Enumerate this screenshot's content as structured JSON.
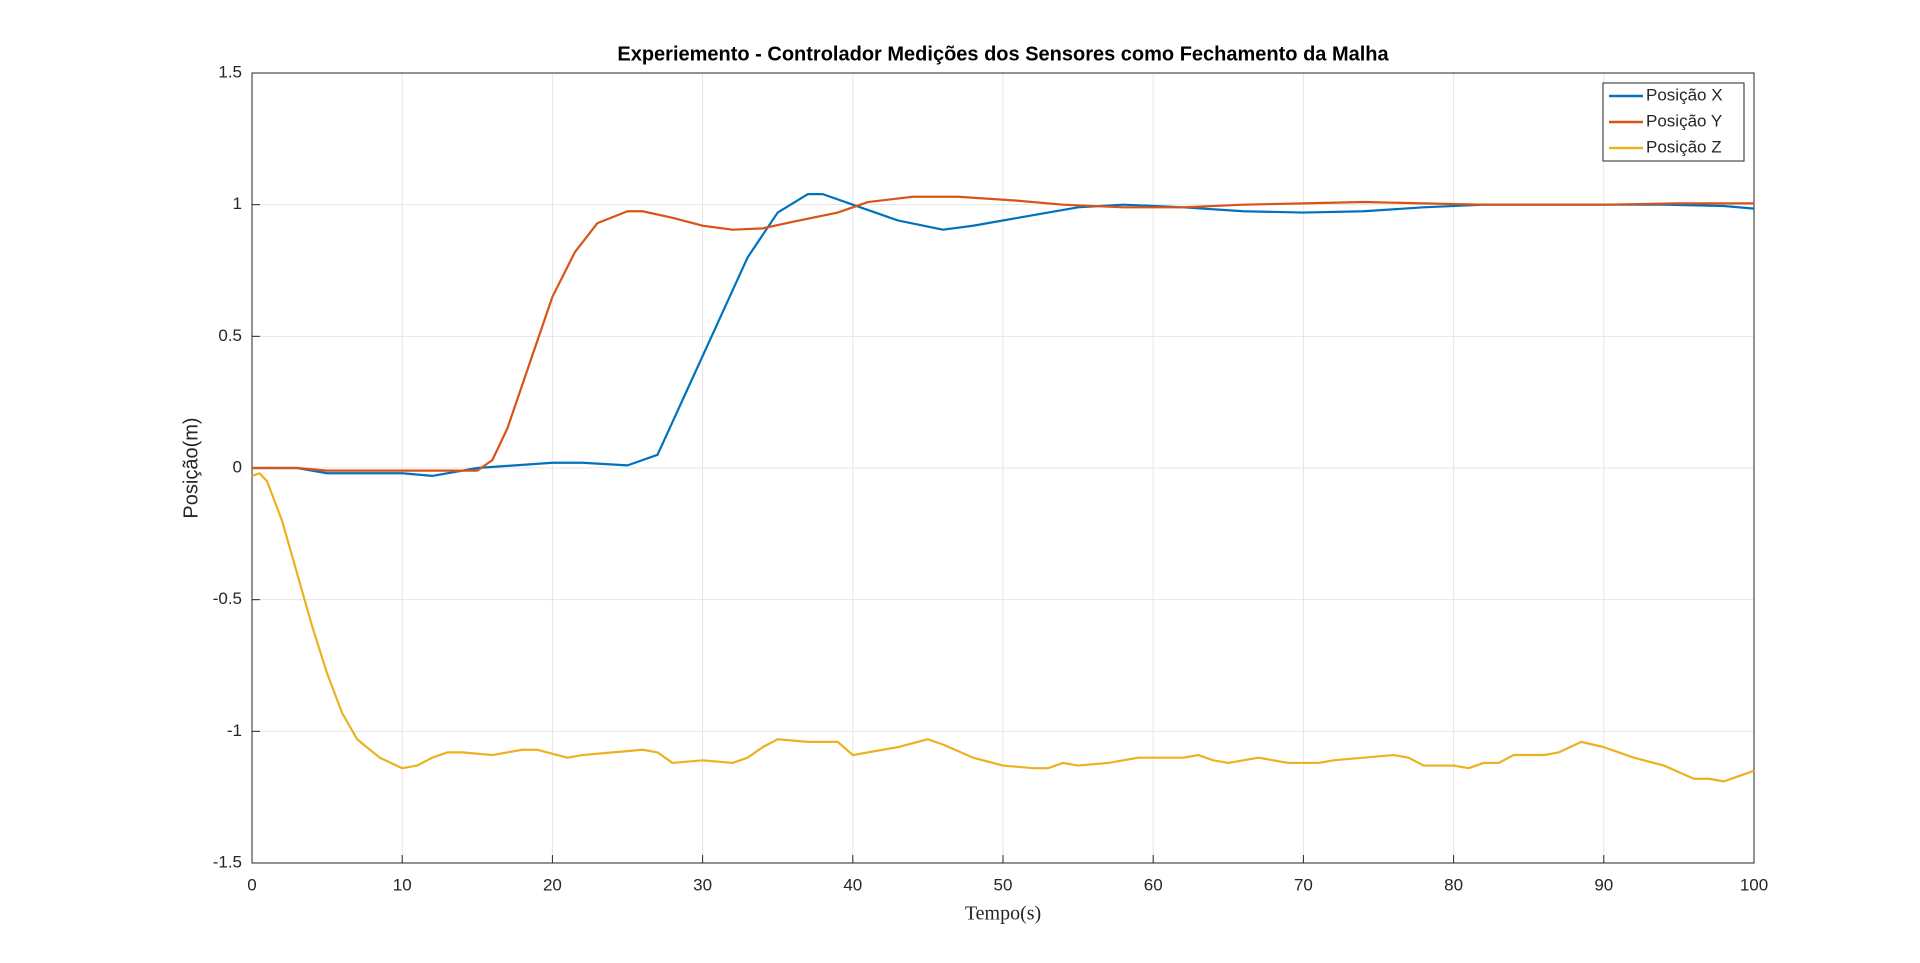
{
  "chart_data": {
    "type": "line",
    "title": "Experiemento - Controlador Medições dos Sensores como Fechamento da Malha",
    "xlabel": "Tempo(s)",
    "ylabel": "Posição(m)",
    "xlim": [
      0,
      100
    ],
    "ylim": [
      -1.5,
      1.5
    ],
    "xticks": [
      0,
      10,
      20,
      30,
      40,
      50,
      60,
      70,
      80,
      90,
      100
    ],
    "yticks": [
      -1.5,
      -1,
      -0.5,
      0,
      0.5,
      1,
      1.5
    ],
    "grid": true,
    "legend": "northeast",
    "series": [
      {
        "name": "Posição X",
        "color": "#0072bd",
        "x": [
          0,
          3,
          5,
          10,
          12,
          15,
          20,
          22,
          25,
          27,
          29,
          31,
          33,
          35,
          37,
          38,
          40,
          43,
          46,
          48,
          51,
          55,
          58,
          62,
          66,
          70,
          74,
          78,
          82,
          86,
          90,
          94,
          98,
          100
        ],
        "values": [
          0,
          0,
          -0.02,
          -0.02,
          -0.03,
          0,
          0.02,
          0.02,
          0.01,
          0.05,
          0.3,
          0.55,
          0.8,
          0.97,
          1.04,
          1.04,
          1.0,
          0.94,
          0.905,
          0.92,
          0.95,
          0.99,
          1.0,
          0.99,
          0.975,
          0.97,
          0.975,
          0.99,
          1.0,
          1.0,
          1.0,
          1.0,
          0.995,
          0.985
        ]
      },
      {
        "name": "Posição Y",
        "color": "#d95319",
        "x": [
          0,
          3,
          5,
          10,
          12,
          15,
          16,
          17,
          18.5,
          20,
          21.5,
          23,
          25,
          26,
          28,
          30,
          32,
          34,
          36,
          39,
          41,
          44,
          47,
          51,
          54,
          58,
          62,
          66,
          70,
          74,
          78,
          82,
          86,
          90,
          95,
          100
        ],
        "values": [
          0,
          0,
          -0.01,
          -0.01,
          -0.01,
          -0.01,
          0.03,
          0.15,
          0.4,
          0.65,
          0.82,
          0.93,
          0.975,
          0.975,
          0.95,
          0.92,
          0.905,
          0.91,
          0.935,
          0.97,
          1.01,
          1.03,
          1.03,
          1.015,
          1.0,
          0.99,
          0.99,
          1.0,
          1.005,
          1.01,
          1.005,
          1.0,
          1.0,
          1.0,
          1.005,
          1.005
        ]
      },
      {
        "name": "Posição Z",
        "color": "#edb120",
        "x": [
          0,
          0.5,
          1,
          2,
          3,
          4,
          5,
          6,
          7,
          8.5,
          10,
          11,
          12,
          13,
          14,
          16,
          18,
          19,
          21,
          22,
          24,
          26,
          27,
          28,
          30,
          32,
          33,
          34,
          35,
          37,
          39,
          40,
          42,
          43,
          45,
          46,
          48,
          50,
          52,
          53,
          54,
          55,
          57,
          59,
          62,
          63,
          64,
          65,
          67,
          69,
          71,
          72,
          74,
          76,
          77,
          78,
          80,
          81,
          82,
          83,
          84,
          86,
          87,
          88.5,
          90,
          92,
          94,
          96,
          97,
          98,
          99,
          100
        ],
        "values": [
          -0.03,
          -0.02,
          -0.05,
          -0.2,
          -0.4,
          -0.6,
          -0.78,
          -0.93,
          -1.03,
          -1.1,
          -1.14,
          -1.13,
          -1.1,
          -1.08,
          -1.08,
          -1.09,
          -1.07,
          -1.07,
          -1.1,
          -1.09,
          -1.08,
          -1.07,
          -1.08,
          -1.12,
          -1.11,
          -1.12,
          -1.1,
          -1.06,
          -1.03,
          -1.04,
          -1.04,
          -1.09,
          -1.07,
          -1.06,
          -1.03,
          -1.05,
          -1.1,
          -1.13,
          -1.14,
          -1.14,
          -1.12,
          -1.13,
          -1.12,
          -1.1,
          -1.1,
          -1.09,
          -1.11,
          -1.12,
          -1.1,
          -1.12,
          -1.12,
          -1.11,
          -1.1,
          -1.09,
          -1.1,
          -1.13,
          -1.13,
          -1.14,
          -1.12,
          -1.12,
          -1.09,
          -1.09,
          -1.08,
          -1.04,
          -1.06,
          -1.1,
          -1.13,
          -1.18,
          -1.18,
          -1.19,
          -1.17,
          -1.15
        ]
      }
    ]
  }
}
